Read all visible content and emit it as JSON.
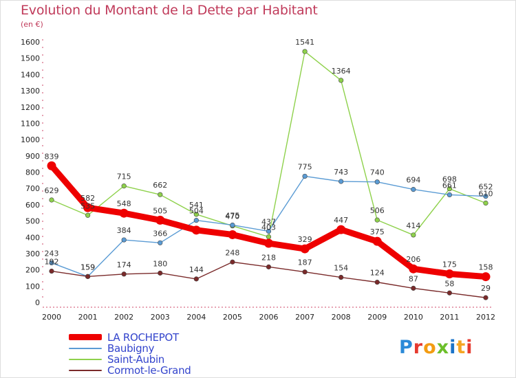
{
  "header": {
    "title": "Evolution du Montant de la Dette par Habitant",
    "subtitle": "(en €)"
  },
  "logo": {
    "text": "Proxiti",
    "colors": [
      "#2b8ad8",
      "#e63a2f",
      "#f39c12",
      "#6cbf2a",
      "#1a73c8",
      "#f5a623",
      "#e63a2f"
    ]
  },
  "colors": {
    "title": "#c03a5a",
    "legend_text": "#3344cc",
    "grid_background": "#ffffff"
  },
  "chart_data": {
    "type": "line",
    "title": "Evolution du Montant de la Dette par Habitant",
    "subtitle": "(en €)",
    "xlabel": "",
    "ylabel": "",
    "x": [
      "2000",
      "2001",
      "2002",
      "2003",
      "2004",
      "2005",
      "2006",
      "2007",
      "2008",
      "2009",
      "2010",
      "2011",
      "2012"
    ],
    "ylim": [
      0,
      1600
    ],
    "yticks": [
      0,
      100,
      200,
      300,
      400,
      500,
      600,
      700,
      800,
      900,
      1000,
      1100,
      1200,
      1300,
      1400,
      1500,
      1600
    ],
    "grid": false,
    "legend_position": "bottom-left",
    "series": [
      {
        "name": "LA ROCHEPOT",
        "color": "#ee0000",
        "values": [
          839,
          582,
          548,
          505,
          444,
          416,
          363,
          329,
          447,
          375,
          206,
          175,
          158
        ],
        "labels": [
          "839",
          "582",
          "548",
          "505",
          "",
          "",
          "",
          "329",
          "447",
          "375",
          "206",
          "175",
          "158"
        ]
      },
      {
        "name": "Baubigny",
        "color": "#5a9bd4",
        "values": [
          243,
          159,
          384,
          366,
          504,
          475,
          437,
          775,
          743,
          740,
          694,
          661,
          652
        ],
        "labels": [
          "243",
          "159",
          "384",
          "366",
          "504",
          "475",
          "437",
          "775",
          "743",
          "740",
          "694",
          "661",
          "652"
        ]
      },
      {
        "name": "Saint-Aubin",
        "color": "#8ed14b",
        "values": [
          629,
          535,
          715,
          662,
          541,
          470,
          403,
          1541,
          1364,
          506,
          414,
          698,
          610
        ],
        "labels": [
          "629",
          "535",
          "715",
          "662",
          "541",
          "470",
          "403",
          "1541",
          "1364",
          "506",
          "414",
          "698",
          "610"
        ]
      },
      {
        "name": "Cormot-le-Grand",
        "color": "#7a2a2a",
        "values": [
          192,
          159,
          174,
          180,
          144,
          248,
          218,
          187,
          154,
          124,
          87,
          58,
          29
        ],
        "labels": [
          "192",
          "159",
          "174",
          "180",
          "144",
          "248",
          "218",
          "187",
          "154",
          "124",
          "87",
          "58",
          "29"
        ]
      }
    ]
  }
}
